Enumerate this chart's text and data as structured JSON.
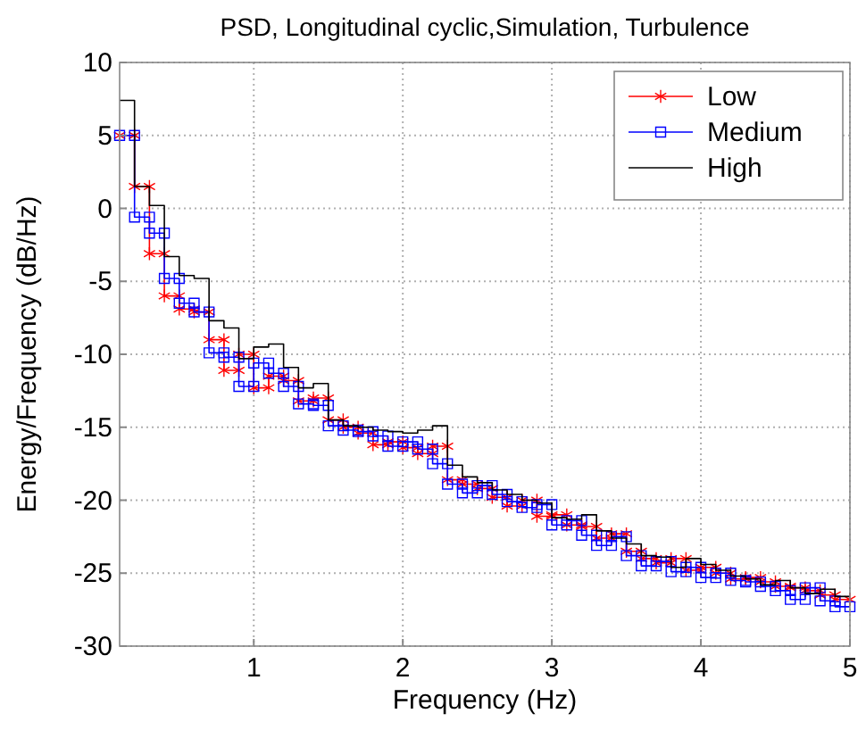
{
  "chart_data": {
    "type": "line",
    "title": "PSD, Longitudinal cyclic,Simulation, Turbulence",
    "xlabel": "Frequency (Hz)",
    "ylabel": "Energy/Frequency (dB/Hz)",
    "x": [
      0.1,
      0.2,
      0.2,
      0.3,
      0.3,
      0.4,
      0.4,
      0.5,
      0.5,
      0.6,
      0.6,
      0.7,
      0.7,
      0.8,
      0.8,
      0.9,
      0.9,
      1.0,
      1.0,
      1.1,
      1.1,
      1.2,
      1.2,
      1.3,
      1.3,
      1.4,
      1.4,
      1.5,
      1.5,
      1.6,
      1.6,
      1.7,
      1.7,
      1.8,
      1.8,
      1.9,
      1.9,
      2.0,
      2.0,
      2.1,
      2.1,
      2.2,
      2.2,
      2.3,
      2.3,
      2.4,
      2.4,
      2.5,
      2.5,
      2.6,
      2.6,
      2.7,
      2.7,
      2.8,
      2.8,
      2.9,
      2.9,
      3.0,
      3.0,
      3.1,
      3.1,
      3.2,
      3.2,
      3.3,
      3.3,
      3.4,
      3.4,
      3.5,
      3.5,
      3.6,
      3.6,
      3.7,
      3.7,
      3.8,
      3.8,
      3.9,
      3.9,
      4.0,
      4.0,
      4.1,
      4.1,
      4.2,
      4.2,
      4.3,
      4.3,
      4.4,
      4.4,
      4.5,
      4.5,
      4.6,
      4.6,
      4.7,
      4.7,
      4.8,
      4.8,
      4.9,
      4.9,
      5.0
    ],
    "series": [
      {
        "name": "Low",
        "color": "#ff0000",
        "marker": "cross",
        "values": [
          5.0,
          5.0,
          1.5,
          1.5,
          -3.1,
          -3.1,
          -6.0,
          -6.0,
          -6.9,
          -6.9,
          -7.1,
          -7.1,
          -9.0,
          -9.0,
          -11.1,
          -11.1,
          -10.0,
          -10.0,
          -12.3,
          -12.3,
          -11.5,
          -11.5,
          -11.8,
          -11.8,
          -13.2,
          -13.2,
          -13.0,
          -13.0,
          -14.5,
          -14.5,
          -15.0,
          -15.0,
          -15.4,
          -15.4,
          -16.2,
          -16.2,
          -16.0,
          -16.0,
          -16.4,
          -16.4,
          -16.8,
          -16.8,
          -16.3,
          -16.3,
          -18.6,
          -18.6,
          -18.9,
          -18.9,
          -19.2,
          -19.2,
          -19.8,
          -19.8,
          -20.4,
          -20.4,
          -20.0,
          -20.0,
          -21.1,
          -21.1,
          -21.0,
          -21.0,
          -21.7,
          -21.7,
          -21.8,
          -21.8,
          -22.6,
          -22.6,
          -22.3,
          -22.3,
          -23.5,
          -23.5,
          -24.0,
          -24.0,
          -24.3,
          -24.3,
          -24.0,
          -24.0,
          -24.8,
          -24.8,
          -24.6,
          -24.6,
          -25.0,
          -25.0,
          -25.4,
          -25.4,
          -25.3,
          -25.3,
          -25.6,
          -25.6,
          -25.9,
          -25.9,
          -26.0,
          -26.0,
          -26.2,
          -26.2,
          -26.5,
          -26.5,
          -26.8,
          -26.8
        ]
      },
      {
        "name": "Medium",
        "color": "#0000ff",
        "marker": "square",
        "values": [
          5.0,
          5.0,
          -0.6,
          -0.6,
          -1.7,
          -1.7,
          -4.8,
          -4.8,
          -6.5,
          -6.5,
          -7.1,
          -7.1,
          -9.9,
          -9.9,
          -10.2,
          -10.2,
          -12.2,
          -12.2,
          -10.6,
          -10.6,
          -11.3,
          -11.3,
          -12.2,
          -12.2,
          -13.4,
          -13.4,
          -13.5,
          -13.5,
          -14.9,
          -14.9,
          -15.2,
          -15.2,
          -15.3,
          -15.3,
          -15.6,
          -15.6,
          -16.3,
          -16.3,
          -16.0,
          -16.0,
          -16.5,
          -16.5,
          -17.5,
          -17.5,
          -18.9,
          -18.9,
          -19.5,
          -19.5,
          -19.0,
          -19.0,
          -19.6,
          -19.6,
          -20.1,
          -20.1,
          -20.5,
          -20.5,
          -20.3,
          -20.3,
          -21.7,
          -21.7,
          -21.4,
          -21.4,
          -22.4,
          -22.4,
          -23.1,
          -23.1,
          -22.5,
          -22.5,
          -23.8,
          -23.8,
          -24.5,
          -24.5,
          -24.2,
          -24.2,
          -24.9,
          -24.9,
          -24.6,
          -24.6,
          -25.3,
          -25.3,
          -25.0,
          -25.0,
          -25.5,
          -25.5,
          -25.6,
          -25.6,
          -25.9,
          -25.9,
          -26.2,
          -26.2,
          -26.8,
          -26.8,
          -26.0,
          -26.0,
          -26.9,
          -26.9,
          -27.3,
          -27.3
        ]
      },
      {
        "name": "High",
        "color": "#000000",
        "values": [
          7.4,
          7.4,
          1.5,
          1.5,
          0.2,
          0.2,
          -3.3,
          -3.3,
          -4.6,
          -4.6,
          -4.8,
          -4.8,
          -7.7,
          -7.7,
          -8.2,
          -8.2,
          -10.3,
          -10.3,
          -9.5,
          -9.5,
          -9.3,
          -9.3,
          -10.9,
          -10.9,
          -12.3,
          -12.3,
          -12.0,
          -12.0,
          -14.5,
          -14.5,
          -14.9,
          -14.9,
          -15.0,
          -15.0,
          -15.2,
          -15.2,
          -15.3,
          -15.3,
          -15.4,
          -15.4,
          -15.2,
          -15.2,
          -14.9,
          -14.9,
          -17.6,
          -17.6,
          -18.4,
          -18.4,
          -18.8,
          -18.8,
          -19.3,
          -19.3,
          -19.6,
          -19.6,
          -20.0,
          -20.0,
          -20.2,
          -20.2,
          -21.2,
          -21.2,
          -21.3,
          -21.3,
          -21.0,
          -21.0,
          -22.1,
          -22.1,
          -22.6,
          -22.6,
          -23.0,
          -23.0,
          -23.8,
          -23.8,
          -23.9,
          -23.9,
          -24.6,
          -24.6,
          -24.0,
          -24.0,
          -24.4,
          -24.4,
          -24.8,
          -24.8,
          -25.2,
          -25.2,
          -25.4,
          -25.4,
          -25.8,
          -25.8,
          -25.5,
          -25.5,
          -26.0,
          -26.0,
          -26.4,
          -26.4,
          -26.1,
          -26.1,
          -26.6,
          -26.6
        ]
      }
    ],
    "xlim": [
      0.1,
      5
    ],
    "xticks": [
      1,
      2,
      3,
      4,
      5
    ],
    "ylim": [
      -30,
      10
    ],
    "yticks": [
      -30,
      -25,
      -20,
      -15,
      -10,
      -5,
      0,
      5,
      10
    ],
    "grid": true,
    "legend": "top right"
  }
}
